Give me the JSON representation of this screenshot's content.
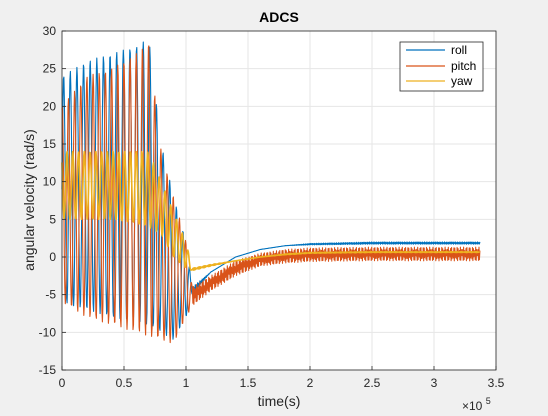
{
  "chart_data": {
    "type": "line",
    "title": "ADCS",
    "xlabel": "time(s)",
    "ylabel": "angular velocity (rad/s)",
    "x_exponent_label": "×10",
    "x_exponent_power": "5",
    "xlim": [
      0,
      3.5
    ],
    "ylim": [
      -15,
      30
    ],
    "xticks": [
      0,
      0.5,
      1,
      1.5,
      2,
      2.5,
      3,
      3.5
    ],
    "xtick_labels": [
      "0",
      "0.5",
      "1",
      "1.5",
      "2",
      "2.5",
      "3",
      "3.5"
    ],
    "yticks": [
      -15,
      -10,
      -5,
      0,
      5,
      10,
      15,
      20,
      25,
      30
    ],
    "ytick_labels": [
      "-15",
      "-10",
      "-5",
      "0",
      "5",
      "10",
      "15",
      "20",
      "25",
      "30"
    ],
    "grid": true,
    "legend_position": "top-right",
    "series": [
      {
        "name": "roll",
        "color": "#0072BD",
        "x": [
          0,
          0.2,
          0.4,
          0.6,
          0.7,
          0.8,
          0.9,
          1.0,
          1.05,
          1.2,
          1.4,
          1.6,
          1.8,
          2.0,
          2.5,
          3.0,
          3.37
        ],
        "upper": [
          24,
          26,
          27,
          28,
          29,
          15,
          8,
          2,
          -4,
          -2,
          0,
          1,
          1.5,
          1.8,
          2,
          2,
          2
        ],
        "lower": [
          -6,
          -7,
          -8,
          -8.5,
          -9,
          -10,
          -11,
          -8,
          -5,
          -2,
          0,
          1,
          1.5,
          1.6,
          1.7,
          1.7,
          1.7
        ]
      },
      {
        "name": "pitch",
        "color": "#D95319",
        "x": [
          0,
          0.2,
          0.4,
          0.6,
          0.7,
          0.8,
          0.9,
          1.0,
          1.05,
          1.2,
          1.4,
          1.6,
          1.8,
          2.0,
          2.5,
          3.0,
          3.37
        ],
        "upper": [
          20,
          24,
          25,
          27,
          28.5,
          14,
          8,
          2,
          -4,
          -2.5,
          -0.5,
          0.5,
          1,
          1.2,
          1.3,
          1.3,
          1.3
        ],
        "lower": [
          -6,
          -8,
          -9,
          -10,
          -10.5,
          -11,
          -11.5,
          -8,
          -6.5,
          -4.5,
          -2.5,
          -1.2,
          -0.8,
          -0.6,
          -0.5,
          -0.5,
          -0.5
        ]
      },
      {
        "name": "yaw",
        "color": "#EDB120",
        "x": [
          0,
          0.2,
          0.4,
          0.6,
          0.7,
          0.8,
          0.9,
          1.0,
          1.05,
          1.2,
          1.4,
          1.6,
          1.8,
          2.0,
          2.5,
          3.0,
          3.37
        ],
        "upper": [
          14,
          14,
          14,
          14,
          14,
          10,
          6,
          2,
          -1.5,
          -1,
          -0.5,
          0,
          0.4,
          0.6,
          0.7,
          0.7,
          0.7
        ],
        "lower": [
          5,
          5,
          5,
          4.5,
          4,
          3,
          0,
          -1.5,
          -1.8,
          -1.2,
          -0.5,
          0,
          0.3,
          0.5,
          0.6,
          0.6,
          0.6
        ]
      }
    ]
  }
}
